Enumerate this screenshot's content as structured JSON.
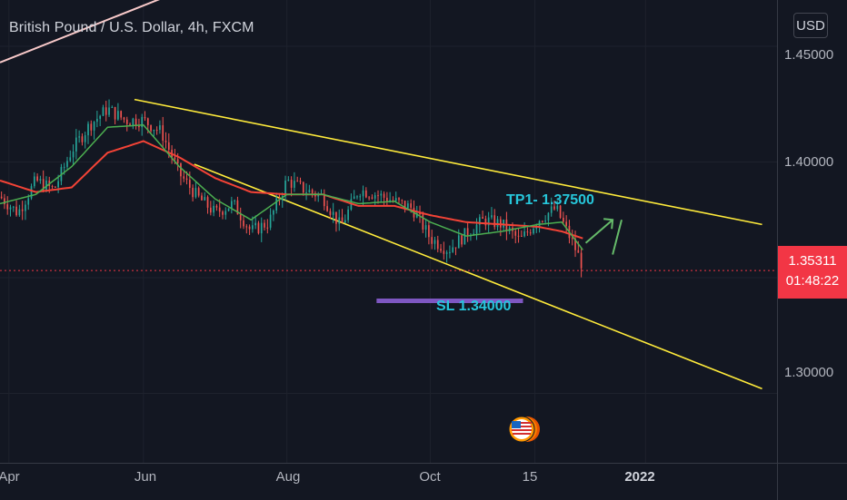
{
  "title": "British Pound / U.S. Dollar, 4h, FXCM",
  "currency_button": "USD",
  "price_ticks": [
    "1.45000",
    "1.40000",
    "1.30000"
  ],
  "current_price": "1.35311",
  "countdown": "01:48:22",
  "time_labels": [
    {
      "text": "Apr",
      "bold": false
    },
    {
      "text": "Jun",
      "bold": false
    },
    {
      "text": "Aug",
      "bold": false
    },
    {
      "text": "Oct",
      "bold": false
    },
    {
      "text": "15",
      "bold": false
    },
    {
      "text": "2022",
      "bold": true
    }
  ],
  "annotations": {
    "tp1": "TP1- 1.37500",
    "sl": "SL 1.34000"
  },
  "colors": {
    "background": "#131722",
    "up_candle": "#26a69a",
    "down_candle": "#ef5350",
    "trendline": "#ffeb3b",
    "ema_fast": "#4caf50",
    "ema_slow": "#f44336",
    "stop_line": "#7e57c2",
    "annotation": "#26c6da",
    "tp_arrow": "#66bb6a",
    "price_badge": "#f23645"
  },
  "chart_data": {
    "type": "candlestick",
    "symbol": "British Pound / U.S. Dollar",
    "interval": "4h",
    "source": "FXCM",
    "ylim": [
      1.27,
      1.47
    ],
    "last_price": 1.35311,
    "close_path": [
      [
        0,
        1.385
      ],
      [
        6,
        1.378
      ],
      [
        12,
        1.392
      ],
      [
        18,
        1.388
      ],
      [
        24,
        1.405
      ],
      [
        30,
        1.416
      ],
      [
        36,
        1.423
      ],
      [
        42,
        1.418
      ],
      [
        48,
        1.418
      ],
      [
        54,
        1.413
      ],
      [
        60,
        1.395
      ],
      [
        66,
        1.385
      ],
      [
        72,
        1.378
      ],
      [
        78,
        1.382
      ],
      [
        84,
        1.37
      ],
      [
        90,
        1.374
      ],
      [
        96,
        1.392
      ],
      [
        102,
        1.388
      ],
      [
        108,
        1.385
      ],
      [
        114,
        1.372
      ],
      [
        120,
        1.388
      ],
      [
        126,
        1.386
      ],
      [
        132,
        1.383
      ],
      [
        138,
        1.38
      ],
      [
        144,
        1.367
      ],
      [
        150,
        1.362
      ],
      [
        156,
        1.369
      ],
      [
        162,
        1.375
      ],
      [
        168,
        1.373
      ],
      [
        174,
        1.366
      ],
      [
        180,
        1.375
      ],
      [
        186,
        1.38
      ],
      [
        192,
        1.364
      ],
      [
        195,
        1.355
      ]
    ],
    "ema_fast": [
      [
        0,
        1.382
      ],
      [
        12,
        1.386
      ],
      [
        24,
        1.398
      ],
      [
        36,
        1.415
      ],
      [
        48,
        1.416
      ],
      [
        60,
        1.398
      ],
      [
        72,
        1.384
      ],
      [
        84,
        1.375
      ],
      [
        96,
        1.386
      ],
      [
        108,
        1.386
      ],
      [
        120,
        1.382
      ],
      [
        132,
        1.383
      ],
      [
        144,
        1.374
      ],
      [
        156,
        1.368
      ],
      [
        168,
        1.37
      ],
      [
        180,
        1.373
      ],
      [
        188,
        1.374
      ],
      [
        195,
        1.362
      ]
    ],
    "ema_slow": [
      [
        0,
        1.392
      ],
      [
        12,
        1.387
      ],
      [
        24,
        1.389
      ],
      [
        36,
        1.404
      ],
      [
        48,
        1.409
      ],
      [
        60,
        1.402
      ],
      [
        72,
        1.393
      ],
      [
        84,
        1.387
      ],
      [
        96,
        1.386
      ],
      [
        108,
        1.386
      ],
      [
        120,
        1.381
      ],
      [
        132,
        1.381
      ],
      [
        144,
        1.377
      ],
      [
        156,
        1.374
      ],
      [
        168,
        1.373
      ],
      [
        180,
        1.372
      ],
      [
        188,
        1.37
      ],
      [
        195,
        1.367
      ]
    ],
    "drawings": {
      "upper_trendline": [
        [
          45,
          1.427
        ],
        [
          255,
          1.373
        ]
      ],
      "lower_trendline": [
        [
          65,
          1.399
        ],
        [
          255,
          1.302
        ]
      ],
      "stop_level": 1.34,
      "tp_level": 1.375,
      "top_left_line": [
        [
          0,
          1.443
        ],
        [
          80,
          1.484
        ]
      ]
    },
    "x_ticks": [
      "Apr",
      "Jun",
      "Aug",
      "Oct",
      "15",
      "2022"
    ]
  }
}
